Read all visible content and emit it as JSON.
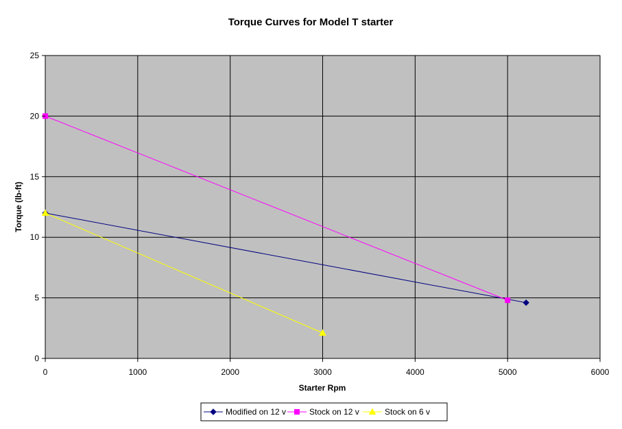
{
  "chart_data": {
    "type": "line",
    "title": "Torque Curves for Model T starter",
    "xlabel": "Starter Rpm",
    "ylabel": "Torque (lb-ft)",
    "xlim": [
      0,
      6000
    ],
    "ylim": [
      0,
      25
    ],
    "x_ticks": [
      0,
      1000,
      2000,
      3000,
      4000,
      5000,
      6000
    ],
    "y_ticks": [
      0,
      5,
      10,
      15,
      20,
      25
    ],
    "grid": true,
    "plot_background": "#c0c0c0",
    "legend_position": "bottom",
    "series": [
      {
        "name": "Modified on 12 v",
        "color": "#000080",
        "marker": "diamond",
        "points": [
          [
            0,
            12
          ],
          [
            5200,
            4.6
          ]
        ]
      },
      {
        "name": "Stock on 12 v",
        "color": "#ff00ff",
        "marker": "square",
        "points": [
          [
            0,
            20
          ],
          [
            5000,
            4.8
          ]
        ]
      },
      {
        "name": "Stock on 6 v",
        "color": "#ffff00",
        "marker": "triangle",
        "points": [
          [
            0,
            12
          ],
          [
            3000,
            2.1
          ]
        ]
      }
    ]
  }
}
